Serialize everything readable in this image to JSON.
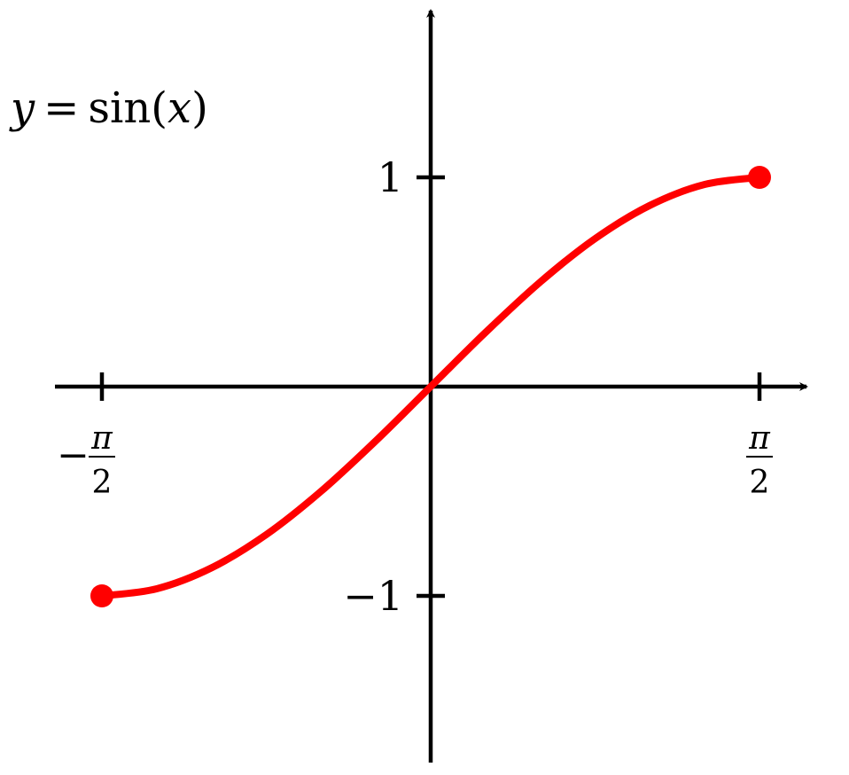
{
  "chart_data": {
    "type": "line",
    "title": "y = sin(x)",
    "title_parts": {
      "y": "y",
      "eq": "=",
      "fn": "sin",
      "open": "(",
      "x": "x",
      "close": ")"
    },
    "xlim": [
      -1.5708,
      1.5708
    ],
    "ylim": [
      -1,
      1
    ],
    "grid": false,
    "x_ticks": [
      {
        "value": -1.5708,
        "label": "−π/2",
        "sign": "−",
        "num": "π",
        "den": "2"
      },
      {
        "value": 1.5708,
        "label": "π/2",
        "sign": "",
        "num": "π",
        "den": "2"
      }
    ],
    "y_ticks": [
      {
        "value": 1,
        "label": "1"
      },
      {
        "value": -1,
        "label": "−1"
      }
    ],
    "series": [
      {
        "color": "#ff0000",
        "x": [
          -1.5708,
          -1.309,
          -1.0472,
          -0.7854,
          -0.5236,
          -0.2618,
          0,
          0.2618,
          0.5236,
          0.7854,
          1.0472,
          1.309,
          1.5708
        ],
        "y": [
          -1,
          -0.9659,
          -0.866,
          -0.7071,
          -0.5,
          -0.2588,
          0,
          0.2588,
          0.5,
          0.7071,
          0.866,
          0.9659,
          1
        ],
        "endpoint_markers": true
      }
    ],
    "axis_color": "#000000"
  }
}
